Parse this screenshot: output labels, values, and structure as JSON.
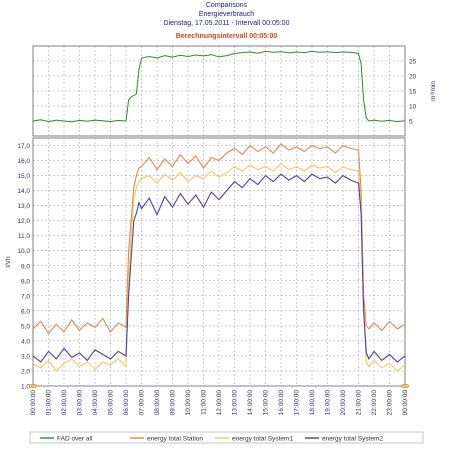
{
  "header": {
    "title": "Comparisons",
    "subtitle": "Energieverbrauch",
    "date_line": "Dienstag, 17.05.2011  -  Intervall 00:05:00",
    "calc_interval": "Berechnungsintervall 00:05:00"
  },
  "colors": {
    "fad": "#2e8b2e",
    "station": "#e8874a",
    "system1": "#f2c75c",
    "system2": "#4a3fa8",
    "grid": "#9a9a9a",
    "frame": "#606060"
  },
  "chart_data": [
    {
      "type": "line",
      "panel": "top",
      "ylabel": "m³/min",
      "ylim": [
        0,
        30
      ],
      "yticks": [
        "5",
        "10",
        "15",
        "20",
        "25"
      ],
      "series": [
        {
          "name": "FAD over all",
          "x": [
            0,
            0.5,
            1,
            1.5,
            2,
            2.5,
            3,
            3.5,
            4,
            4.5,
            5,
            5.5,
            6,
            6.17,
            6.33,
            6.5,
            6.67,
            6.83,
            7,
            7.5,
            8,
            8.5,
            9,
            9.5,
            10,
            10.5,
            11,
            11.5,
            12,
            12.5,
            13,
            13.5,
            14,
            14.5,
            15,
            15.5,
            16,
            16.5,
            17,
            17.5,
            18,
            18.5,
            19,
            19.5,
            20,
            20.5,
            21,
            21.17,
            21.33,
            21.5,
            21.67,
            22,
            22.5,
            23,
            23.5,
            24
          ],
          "values": [
            5,
            5.4,
            4.8,
            5.3,
            5,
            4.7,
            5.2,
            4.9,
            5.3,
            5.1,
            4.8,
            5.2,
            5,
            12,
            13,
            13.5,
            14,
            22,
            26,
            26.5,
            26,
            26.8,
            26.3,
            26.9,
            26.5,
            27,
            26.7,
            27.1,
            26.4,
            26.8,
            27.5,
            27.8,
            28,
            27.6,
            28.2,
            27.9,
            28.1,
            27.7,
            28,
            27.8,
            28.2,
            27.9,
            28.1,
            27.8,
            28,
            27.9,
            27.5,
            24,
            12,
            6,
            5,
            5.3,
            4.9,
            5.2,
            4.8,
            5.1
          ]
        }
      ]
    },
    {
      "type": "line",
      "panel": "bottom",
      "ylabel": "l/Vh",
      "ylim": [
        1,
        17.5
      ],
      "yticks": [
        "1,0",
        "2,0",
        "3,0",
        "4,0",
        "5,0",
        "6,0",
        "7,0",
        "8,0",
        "9,0",
        "10,0",
        "11,0",
        "12,0",
        "13,0",
        "14,0",
        "15,0",
        "16,0",
        "17,0"
      ],
      "x_tick_labels": [
        "00:00:00",
        "01:00:00",
        "02:00:00",
        "03:00:00",
        "04:00:00",
        "05:00:00",
        "06:00:00",
        "07:00:00",
        "08:00:00",
        "09:00:00",
        "10:00:00",
        "11:00:00",
        "12:00:00",
        "13:00:00",
        "14:00:00",
        "15:00:00",
        "16:00:00",
        "17:00:00",
        "18:00:00",
        "19:00:00",
        "20:00:00",
        "21:00:00",
        "22:00:00",
        "23:00:00",
        "00:00:00"
      ],
      "x": [
        0,
        0.5,
        1,
        1.5,
        2,
        2.5,
        3,
        3.5,
        4,
        4.5,
        5,
        5.5,
        6,
        6.17,
        6.33,
        6.5,
        6.67,
        6.83,
        7,
        7.5,
        8,
        8.5,
        9,
        9.5,
        10,
        10.5,
        11,
        11.5,
        12,
        12.5,
        13,
        13.5,
        14,
        14.5,
        15,
        15.5,
        16,
        16.5,
        17,
        17.5,
        18,
        18.5,
        19,
        19.5,
        20,
        20.5,
        21,
        21.17,
        21.33,
        21.5,
        21.67,
        22,
        22.5,
        23,
        23.5,
        24
      ],
      "series": [
        {
          "name": "energy total Station",
          "values": [
            4.8,
            5.3,
            4.5,
            5.1,
            4.6,
            5.4,
            4.7,
            5.2,
            4.9,
            5.5,
            4.6,
            5.2,
            4.9,
            10,
            12,
            14.2,
            15,
            15.5,
            15.6,
            16.2,
            15.4,
            16.1,
            15.6,
            16.4,
            15.8,
            16.3,
            15.5,
            16.2,
            16,
            16.5,
            16.8,
            16.4,
            17,
            16.6,
            16.9,
            16.5,
            17.1,
            16.7,
            16.9,
            16.6,
            17,
            16.8,
            16.9,
            16.5,
            17,
            16.8,
            16.7,
            14,
            7,
            5,
            4.8,
            5.2,
            4.7,
            5.3,
            4.8,
            5.1
          ]
        },
        {
          "name": "energy total System1",
          "values": [
            2.5,
            2.2,
            2.7,
            2,
            2.5,
            2.8,
            2.3,
            2.6,
            2.1,
            2.6,
            2.4,
            2.8,
            2.3,
            8,
            11,
            13.5,
            14.2,
            14.6,
            14.8,
            15,
            14.5,
            15.1,
            14.7,
            15.2,
            14.6,
            15,
            14.8,
            15.3,
            14.9,
            15.2,
            15.6,
            15.3,
            15.7,
            15.4,
            15.6,
            15.3,
            15.8,
            15.4,
            15.6,
            15.3,
            15.7,
            15.5,
            15.6,
            15.2,
            15.6,
            15.4,
            15.3,
            13,
            6,
            2.6,
            2.3,
            2.7,
            2.2,
            2.5,
            2,
            2.4
          ]
        },
        {
          "name": "energy total System2",
          "values": [
            3,
            2.6,
            3.3,
            2.8,
            3.5,
            2.9,
            3.2,
            2.7,
            3.4,
            3.1,
            2.8,
            3.3,
            3,
            7,
            9.5,
            12,
            12.5,
            13.2,
            12.8,
            13.5,
            12.4,
            13.6,
            12.9,
            13.8,
            13.1,
            13.7,
            12.9,
            13.9,
            13.4,
            14,
            14.6,
            14.2,
            14.8,
            14.4,
            15,
            14.6,
            15.1,
            14.7,
            15,
            14.6,
            15.1,
            14.8,
            14.9,
            14.5,
            15,
            14.7,
            14.5,
            12.5,
            6,
            3.2,
            2.8,
            3.3,
            2.7,
            3.1,
            2.6,
            3
          ]
        }
      ],
      "legend": "bottom"
    }
  ]
}
